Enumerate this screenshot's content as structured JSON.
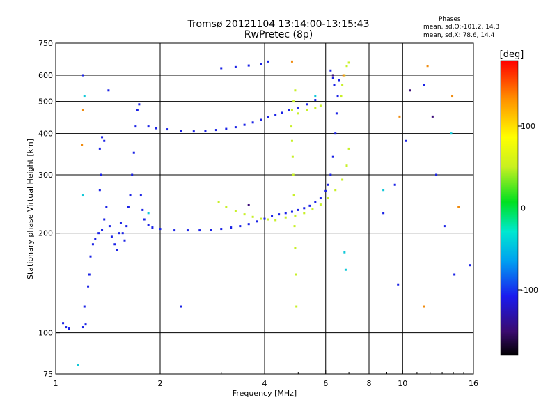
{
  "header": {
    "title_line1": "Tromsø 20121104 13:14:00-13:15:43",
    "title_line2": "RwPretec (8p)",
    "stats_title": "Phases",
    "stats_line1": "mean, sd,O:-101.2, 14.3",
    "stats_line2": "mean, sd,X: 78.6, 14.4"
  },
  "colorbar": {
    "label": "[deg]",
    "ticks": [
      "100",
      "0",
      "-100"
    ],
    "tick_values": [
      100,
      0,
      -100
    ],
    "range": [
      -180,
      180
    ]
  },
  "chart_data": {
    "type": "scatter",
    "title": "Tromsø 20121104 13:14:00-13:15:43",
    "subtitle": "RwPretec (8p)",
    "xlabel": "Frequency [MHz]",
    "ylabel": "Stationary phase Virtual Height [km]",
    "x_scale": "log",
    "y_scale": "log",
    "xlim": [
      1,
      16
    ],
    "ylim": [
      75,
      750
    ],
    "x_ticks": [
      1,
      2,
      4,
      6,
      8,
      10,
      16
    ],
    "x_ticklabels": [
      "1",
      "2",
      "4",
      "6",
      "8",
      "10",
      "16"
    ],
    "x_gridlines": [
      2,
      4,
      6,
      8,
      10
    ],
    "y_ticks": [
      75,
      100,
      200,
      300,
      400,
      500,
      600,
      750
    ],
    "y_ticklabels": [
      "75",
      "100",
      "200",
      "300",
      "400",
      "500",
      "600",
      "750"
    ],
    "y_gridlines": [
      100,
      200,
      300,
      400,
      500,
      600
    ],
    "grid": true,
    "color_by": "phase [deg]",
    "series": [
      {
        "phase": -100,
        "color": "#1a22e6",
        "points": [
          [
            1.05,
            107
          ],
          [
            1.07,
            104
          ],
          [
            1.09,
            103
          ],
          [
            1.2,
            104
          ],
          [
            1.22,
            106
          ],
          [
            1.21,
            120
          ],
          [
            1.24,
            138
          ],
          [
            1.25,
            150
          ],
          [
            1.26,
            170
          ],
          [
            1.28,
            185
          ],
          [
            1.3,
            192
          ],
          [
            1.33,
            200
          ],
          [
            1.36,
            205
          ],
          [
            1.38,
            220
          ],
          [
            1.4,
            240
          ],
          [
            1.43,
            210
          ],
          [
            1.45,
            195
          ],
          [
            1.48,
            185
          ],
          [
            1.5,
            178
          ],
          [
            1.52,
            200
          ],
          [
            1.54,
            215
          ],
          [
            1.56,
            200
          ],
          [
            1.58,
            190
          ],
          [
            1.6,
            210
          ],
          [
            1.62,
            240
          ],
          [
            1.64,
            260
          ],
          [
            1.66,
            300
          ],
          [
            1.68,
            350
          ],
          [
            1.7,
            420
          ],
          [
            1.72,
            470
          ],
          [
            1.74,
            490
          ],
          [
            1.76,
            260
          ],
          [
            1.78,
            235
          ],
          [
            1.8,
            220
          ],
          [
            1.85,
            212
          ],
          [
            1.9,
            208
          ],
          [
            2.0,
            206
          ],
          [
            2.2,
            204
          ],
          [
            2.4,
            204
          ],
          [
            2.6,
            204
          ],
          [
            2.8,
            205
          ],
          [
            3.0,
            206
          ],
          [
            3.2,
            208
          ],
          [
            3.4,
            210
          ],
          [
            3.6,
            213
          ],
          [
            3.8,
            217
          ],
          [
            4.0,
            221
          ],
          [
            4.2,
            225
          ],
          [
            4.4,
            228
          ],
          [
            4.6,
            230
          ],
          [
            4.8,
            232
          ],
          [
            5.0,
            235
          ],
          [
            5.2,
            238
          ],
          [
            5.4,
            242
          ],
          [
            5.6,
            248
          ],
          [
            5.8,
            255
          ],
          [
            6.0,
            268
          ],
          [
            6.1,
            280
          ],
          [
            6.2,
            300
          ],
          [
            6.3,
            340
          ],
          [
            6.4,
            400
          ],
          [
            6.45,
            460
          ],
          [
            6.5,
            520
          ],
          [
            6.55,
            580
          ],
          [
            1.85,
            420
          ],
          [
            1.95,
            415
          ],
          [
            2.1,
            412
          ],
          [
            2.3,
            408
          ],
          [
            2.5,
            406
          ],
          [
            2.7,
            408
          ],
          [
            2.9,
            410
          ],
          [
            3.1,
            413
          ],
          [
            3.3,
            418
          ],
          [
            3.5,
            425
          ],
          [
            3.7,
            432
          ],
          [
            3.9,
            440
          ],
          [
            4.1,
            448
          ],
          [
            4.3,
            455
          ],
          [
            4.5,
            462
          ],
          [
            4.7,
            470
          ],
          [
            5.0,
            478
          ],
          [
            5.3,
            490
          ],
          [
            5.6,
            505
          ],
          [
            3.0,
            630
          ],
          [
            3.3,
            635
          ],
          [
            3.6,
            642
          ],
          [
            3.9,
            648
          ],
          [
            4.1,
            660
          ],
          [
            6.2,
            620
          ],
          [
            6.3,
            590
          ],
          [
            6.35,
            560
          ],
          [
            1.34,
            360
          ],
          [
            1.36,
            390
          ],
          [
            1.38,
            380
          ],
          [
            1.35,
            300
          ],
          [
            1.34,
            270
          ],
          [
            1.2,
            600
          ],
          [
            1.42,
            540
          ],
          [
            10.2,
            380
          ],
          [
            11.5,
            560
          ],
          [
            12.5,
            300
          ],
          [
            13.2,
            210
          ],
          [
            14.1,
            150
          ],
          [
            15.6,
            160
          ],
          [
            2.3,
            120
          ],
          [
            9.5,
            280
          ],
          [
            8.8,
            230
          ],
          [
            9.7,
            140
          ]
        ]
      },
      {
        "phase": 85,
        "color": "#c8f028",
        "points": [
          [
            2.95,
            248
          ],
          [
            3.1,
            240
          ],
          [
            3.3,
            233
          ],
          [
            3.5,
            228
          ],
          [
            3.7,
            224
          ],
          [
            3.9,
            221
          ],
          [
            4.1,
            220
          ],
          [
            4.3,
            219
          ],
          [
            4.6,
            223
          ],
          [
            4.9,
            226
          ],
          [
            5.2,
            230
          ],
          [
            5.5,
            236
          ],
          [
            5.8,
            244
          ],
          [
            6.1,
            255
          ],
          [
            6.4,
            270
          ],
          [
            6.7,
            290
          ],
          [
            6.9,
            320
          ],
          [
            7.0,
            360
          ],
          [
            5.0,
            460
          ],
          [
            5.3,
            470
          ],
          [
            5.6,
            478
          ],
          [
            5.8,
            485
          ],
          [
            4.8,
            470
          ],
          [
            4.85,
            500
          ],
          [
            4.9,
            540
          ],
          [
            4.78,
            420
          ],
          [
            4.8,
            380
          ],
          [
            4.82,
            340
          ],
          [
            4.84,
            300
          ],
          [
            4.86,
            260
          ],
          [
            4.88,
            210
          ],
          [
            4.9,
            180
          ],
          [
            4.92,
            150
          ],
          [
            4.94,
            120
          ],
          [
            6.7,
            560
          ],
          [
            6.8,
            600
          ],
          [
            6.9,
            640
          ],
          [
            7.0,
            655
          ],
          [
            6.65,
            520
          ]
        ]
      },
      {
        "phase": 140,
        "color": "#f08c10",
        "points": [
          [
            1.2,
            470
          ],
          [
            1.19,
            370
          ],
          [
            6.75,
            600
          ],
          [
            11.8,
            640
          ],
          [
            13.9,
            520
          ],
          [
            11.5,
            120
          ],
          [
            9.8,
            450
          ],
          [
            4.8,
            660
          ],
          [
            14.5,
            240
          ]
        ]
      },
      {
        "phase": -10,
        "color": "#10c8d8",
        "points": [
          [
            1.21,
            520
          ],
          [
            1.2,
            260
          ],
          [
            1.16,
            80
          ],
          [
            8.8,
            270
          ],
          [
            6.8,
            175
          ],
          [
            6.85,
            155
          ],
          [
            13.8,
            400
          ],
          [
            1.85,
            230
          ],
          [
            5.6,
            520
          ]
        ]
      },
      {
        "phase": -150,
        "color": "#3a0a78",
        "points": [
          [
            6.3,
            600
          ],
          [
            3.6,
            243
          ],
          [
            12.2,
            450
          ],
          [
            10.5,
            540
          ]
        ]
      }
    ]
  },
  "axis_titles": {
    "x": "Frequency [MHz]",
    "y": "Stationary phase Virtual Height [km]"
  }
}
